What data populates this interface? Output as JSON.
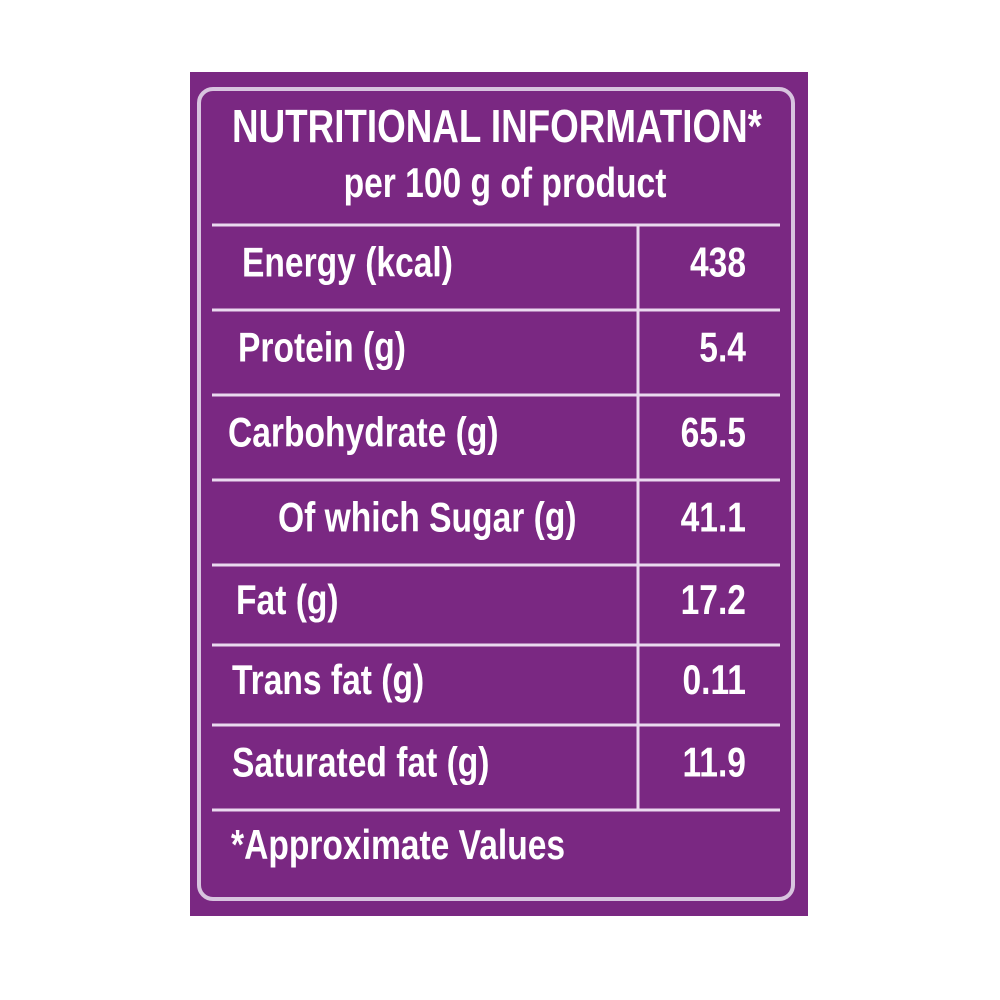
{
  "title": "NUTRITIONAL INFORMATION*",
  "subtitle": "per 100 g of product",
  "table": {
    "rows": [
      [
        "Energy (kcal)",
        438
      ],
      [
        "Protein (g)",
        5.4
      ],
      [
        "Carbohydrate (g)",
        65.5
      ],
      [
        "Of which Sugar (g)",
        41.1
      ],
      [
        "Fat (g)",
        17.2
      ],
      [
        "Trans fat (g)",
        0.11
      ],
      [
        "Saturated fat (g)",
        11.9
      ]
    ]
  },
  "footnote": "*Approximate Values"
}
